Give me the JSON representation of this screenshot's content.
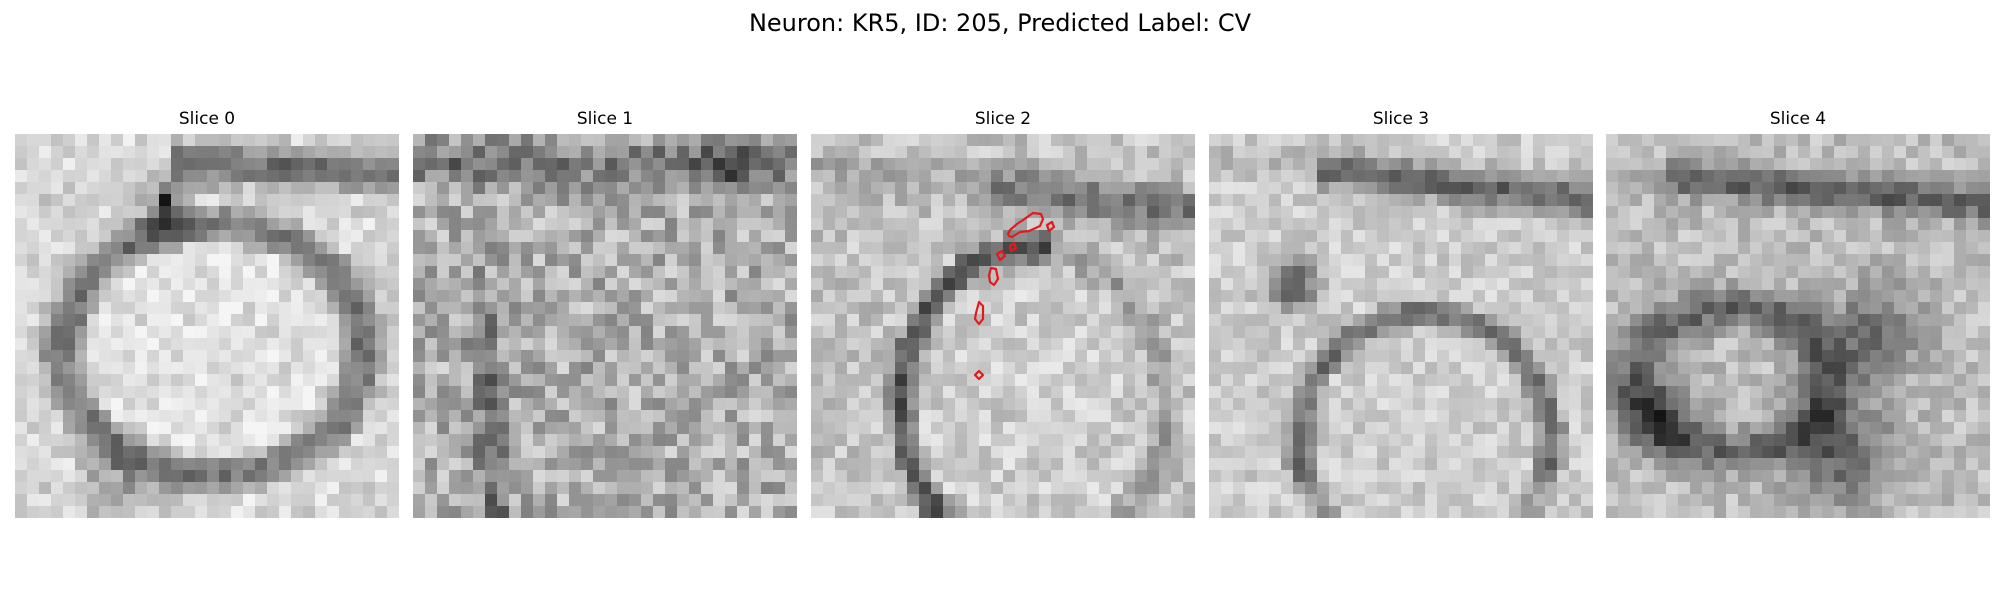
{
  "figure": {
    "title": "Neuron: KR5, ID: 205, Predicted Label: CV"
  },
  "panels": [
    {
      "title": "Slice 0",
      "has_contour": false,
      "pattern": "round-cell"
    },
    {
      "title": "Slice 1",
      "has_contour": false,
      "pattern": "noisy"
    },
    {
      "title": "Slice 2",
      "has_contour": true,
      "pattern": "curved-membrane"
    },
    {
      "title": "Slice 3",
      "has_contour": false,
      "pattern": "round-cell-lower"
    },
    {
      "title": "Slice 4",
      "has_contour": false,
      "pattern": "dark-blobs"
    }
  ],
  "colors": {
    "contour": "#e31a1c",
    "background": "#ffffff"
  }
}
